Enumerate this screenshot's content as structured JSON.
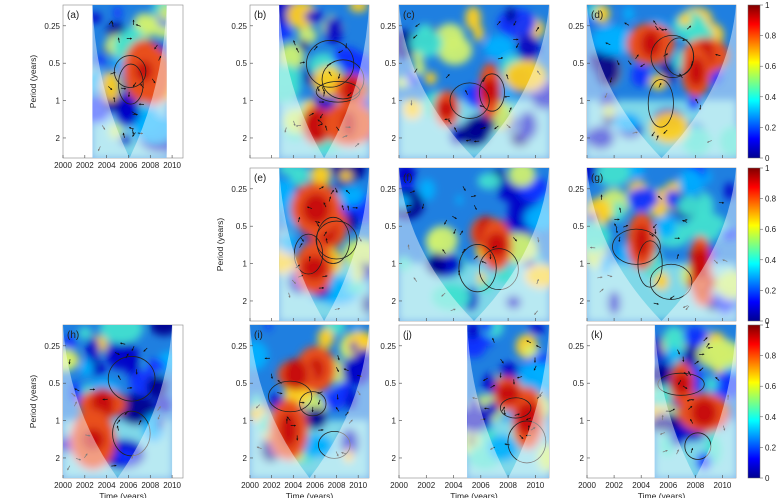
{
  "chart_data": {
    "type": "heatmap",
    "description": "Wavelet coherence panels (a)-(k): time vs period, colored by coherence 0-1",
    "x_unit_label": "Time (years)",
    "y_unit_label": "Period (years)",
    "x_ticks": [
      "2000",
      "2002",
      "2004",
      "2006",
      "2008",
      "2010"
    ],
    "y_ticks": [
      "0.25",
      "0.5",
      "1",
      "2"
    ],
    "colorbar_ticks": [
      "0",
      "0.2",
      "0.4",
      "0.6",
      "0.8",
      "1"
    ],
    "colorbar_range": [
      0,
      1
    ],
    "colors": {
      "low": "#00008f",
      "mid": "#3fbfe0",
      "high": "#d0301a"
    },
    "panels": [
      {
        "label": "(a)",
        "row": 0,
        "col": 0,
        "data_start": 2002.7,
        "data_end": 2009.5
      },
      {
        "label": "(b)",
        "row": 0,
        "col": 1,
        "data_start": 2002.7,
        "data_end": 2011.0
      },
      {
        "label": "(c)",
        "row": 0,
        "col": 2,
        "data_start": 2000.0,
        "data_end": 2011.0
      },
      {
        "label": "(d)",
        "row": 0,
        "col": 3,
        "data_start": 2000.0,
        "data_end": 2011.0
      },
      {
        "label": "(e)",
        "row": 1,
        "col": 1,
        "data_start": 2002.7,
        "data_end": 2011.0
      },
      {
        "label": "(f)",
        "row": 1,
        "col": 2,
        "data_start": 2000.0,
        "data_end": 2011.0
      },
      {
        "label": "(g)",
        "row": 1,
        "col": 3,
        "data_start": 2000.0,
        "data_end": 2011.0
      },
      {
        "label": "(h)",
        "row": 2,
        "col": 0,
        "data_start": 2000.0,
        "data_end": 2010.0
      },
      {
        "label": "(i)",
        "row": 2,
        "col": 1,
        "data_start": 2000.0,
        "data_end": 2011.0
      },
      {
        "label": "(j)",
        "row": 2,
        "col": 2,
        "data_start": 2005.0,
        "data_end": 2011.0
      },
      {
        "label": "(k)",
        "row": 2,
        "col": 3,
        "data_start": 2005.0,
        "data_end": 2011.0
      }
    ]
  }
}
